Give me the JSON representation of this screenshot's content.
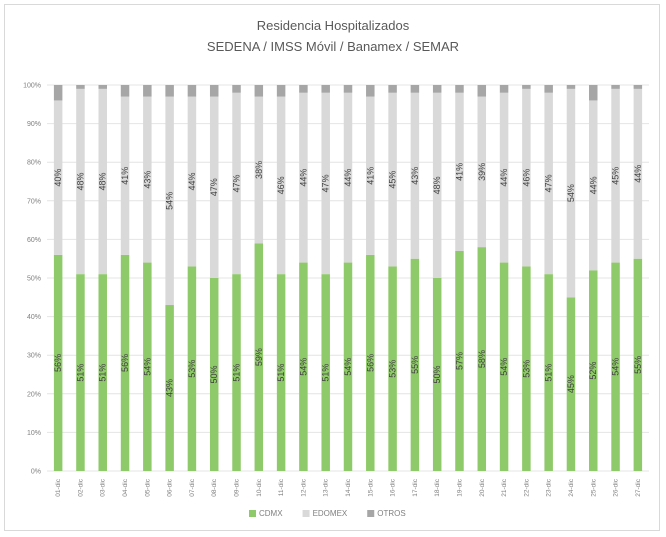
{
  "chart_data": {
    "type": "bar",
    "stacked": true,
    "title": "Residencia Hospitalizados",
    "subtitle": "SEDENA / IMSS Móvil / Banamex / SEMAR",
    "categories": [
      "01-dic",
      "02-dic",
      "03-dic",
      "04-dic",
      "05-dic",
      "06-dic",
      "07-dic",
      "08-dic",
      "09-dic",
      "10-dic",
      "11-dic",
      "12-dic",
      "13-dic",
      "14-dic",
      "15-dic",
      "16-dic",
      "17-dic",
      "18-dic",
      "19-dic",
      "20-dic",
      "21-dic",
      "22-dic",
      "23-dic",
      "24-dic",
      "25-dic",
      "26-dic",
      "27-dic"
    ],
    "series": [
      {
        "name": "CDMX",
        "color": "#8fca6a",
        "values": [
          56,
          51,
          51,
          56,
          54,
          43,
          53,
          50,
          51,
          59,
          51,
          54,
          51,
          54,
          56,
          53,
          55,
          50,
          57,
          58,
          54,
          53,
          51,
          45,
          52,
          54,
          55
        ]
      },
      {
        "name": "EDOMEX",
        "color": "#d9d9d9",
        "values": [
          40,
          48,
          48,
          41,
          43,
          54,
          44,
          47,
          47,
          38,
          46,
          44,
          47,
          44,
          41,
          45,
          43,
          48,
          41,
          39,
          44,
          46,
          47,
          54,
          44,
          45,
          44
        ]
      },
      {
        "name": "OTROS",
        "color": "#a6a6a6",
        "values": [
          4,
          1,
          1,
          3,
          3,
          3,
          3,
          3,
          2,
          3,
          3,
          2,
          2,
          2,
          3,
          2,
          2,
          2,
          2,
          3,
          2,
          1,
          2,
          1,
          4,
          1,
          1
        ]
      }
    ],
    "data_labels": {
      "CDMX": [
        "56%",
        "51%",
        "51%",
        "56%",
        "54%",
        "43%",
        "53%",
        "50%",
        "51%",
        "59%",
        "51%",
        "54%",
        "51%",
        "54%",
        "56%",
        "53%",
        "55%",
        "50%",
        "57%",
        "58%",
        "54%",
        "53%",
        "51%",
        "45%",
        "52%",
        "54%",
        "55%"
      ],
      "EDOMEX": [
        "40%",
        "48%",
        "48%",
        "41%",
        "43%",
        "54%",
        "44%",
        "47%",
        "47%",
        "38%",
        "46%",
        "44%",
        "47%",
        "44%",
        "41%",
        "45%",
        "43%",
        "48%",
        "41%",
        "39%",
        "44%",
        "46%",
        "47%",
        "54%",
        "44%",
        "45%",
        "44%"
      ]
    },
    "y_ticks": [
      "0%",
      "10%",
      "20%",
      "30%",
      "40%",
      "50%",
      "60%",
      "70%",
      "80%",
      "90%",
      "100%"
    ],
    "ylim": [
      0,
      100
    ],
    "grid": true,
    "legend": {
      "placement": "bottom",
      "labels": [
        "CDMX",
        "EDOMEX",
        "OTROS"
      ]
    }
  }
}
